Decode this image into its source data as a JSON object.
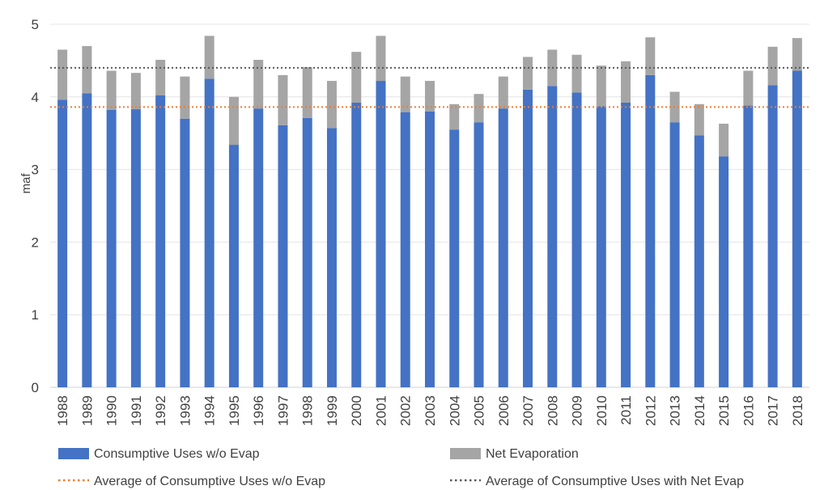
{
  "chart_data": {
    "type": "bar",
    "stacked": true,
    "categories": [
      "1988",
      "1989",
      "1990",
      "1991",
      "1992",
      "1993",
      "1994",
      "1995",
      "1996",
      "1997",
      "1998",
      "1999",
      "2000",
      "2001",
      "2002",
      "2003",
      "2004",
      "2005",
      "2006",
      "2007",
      "2008",
      "2009",
      "2010",
      "2011",
      "2012",
      "2013",
      "2014",
      "2015",
      "2016",
      "2017",
      "2018"
    ],
    "series": [
      {
        "name": "Consumptive Uses w/o Evap",
        "color": "#4472c4",
        "values": [
          3.96,
          4.05,
          3.82,
          3.83,
          4.02,
          3.7,
          4.25,
          3.34,
          3.84,
          3.61,
          3.71,
          3.57,
          3.92,
          4.22,
          3.79,
          3.8,
          3.55,
          3.65,
          3.84,
          4.1,
          4.15,
          4.06,
          3.87,
          3.92,
          4.3,
          3.65,
          3.47,
          3.18,
          3.88,
          4.16,
          4.36
        ]
      },
      {
        "name": "Net Evaporation",
        "color": "#a5a5a5",
        "values": [
          0.69,
          0.65,
          0.54,
          0.5,
          0.49,
          0.58,
          0.59,
          0.66,
          0.67,
          0.69,
          0.7,
          0.65,
          0.7,
          0.62,
          0.49,
          0.42,
          0.35,
          0.39,
          0.44,
          0.45,
          0.5,
          0.52,
          0.56,
          0.57,
          0.52,
          0.42,
          0.43,
          0.45,
          0.48,
          0.53,
          0.45
        ]
      }
    ],
    "reference_lines": [
      {
        "name": "Average of Consumptive Uses w/o Evap",
        "value": 3.86,
        "color": "#ed7d31",
        "style": "dotted"
      },
      {
        "name": "Average of Consumptive Uses with Net Evap",
        "value": 4.4,
        "color": "#595959",
        "style": "dotted"
      }
    ],
    "title": "",
    "xlabel": "",
    "ylabel": "maf",
    "ylim": [
      0,
      5
    ],
    "yticks": [
      0,
      1,
      2,
      3,
      4,
      5
    ],
    "grid": true,
    "legend_position": "bottom"
  }
}
